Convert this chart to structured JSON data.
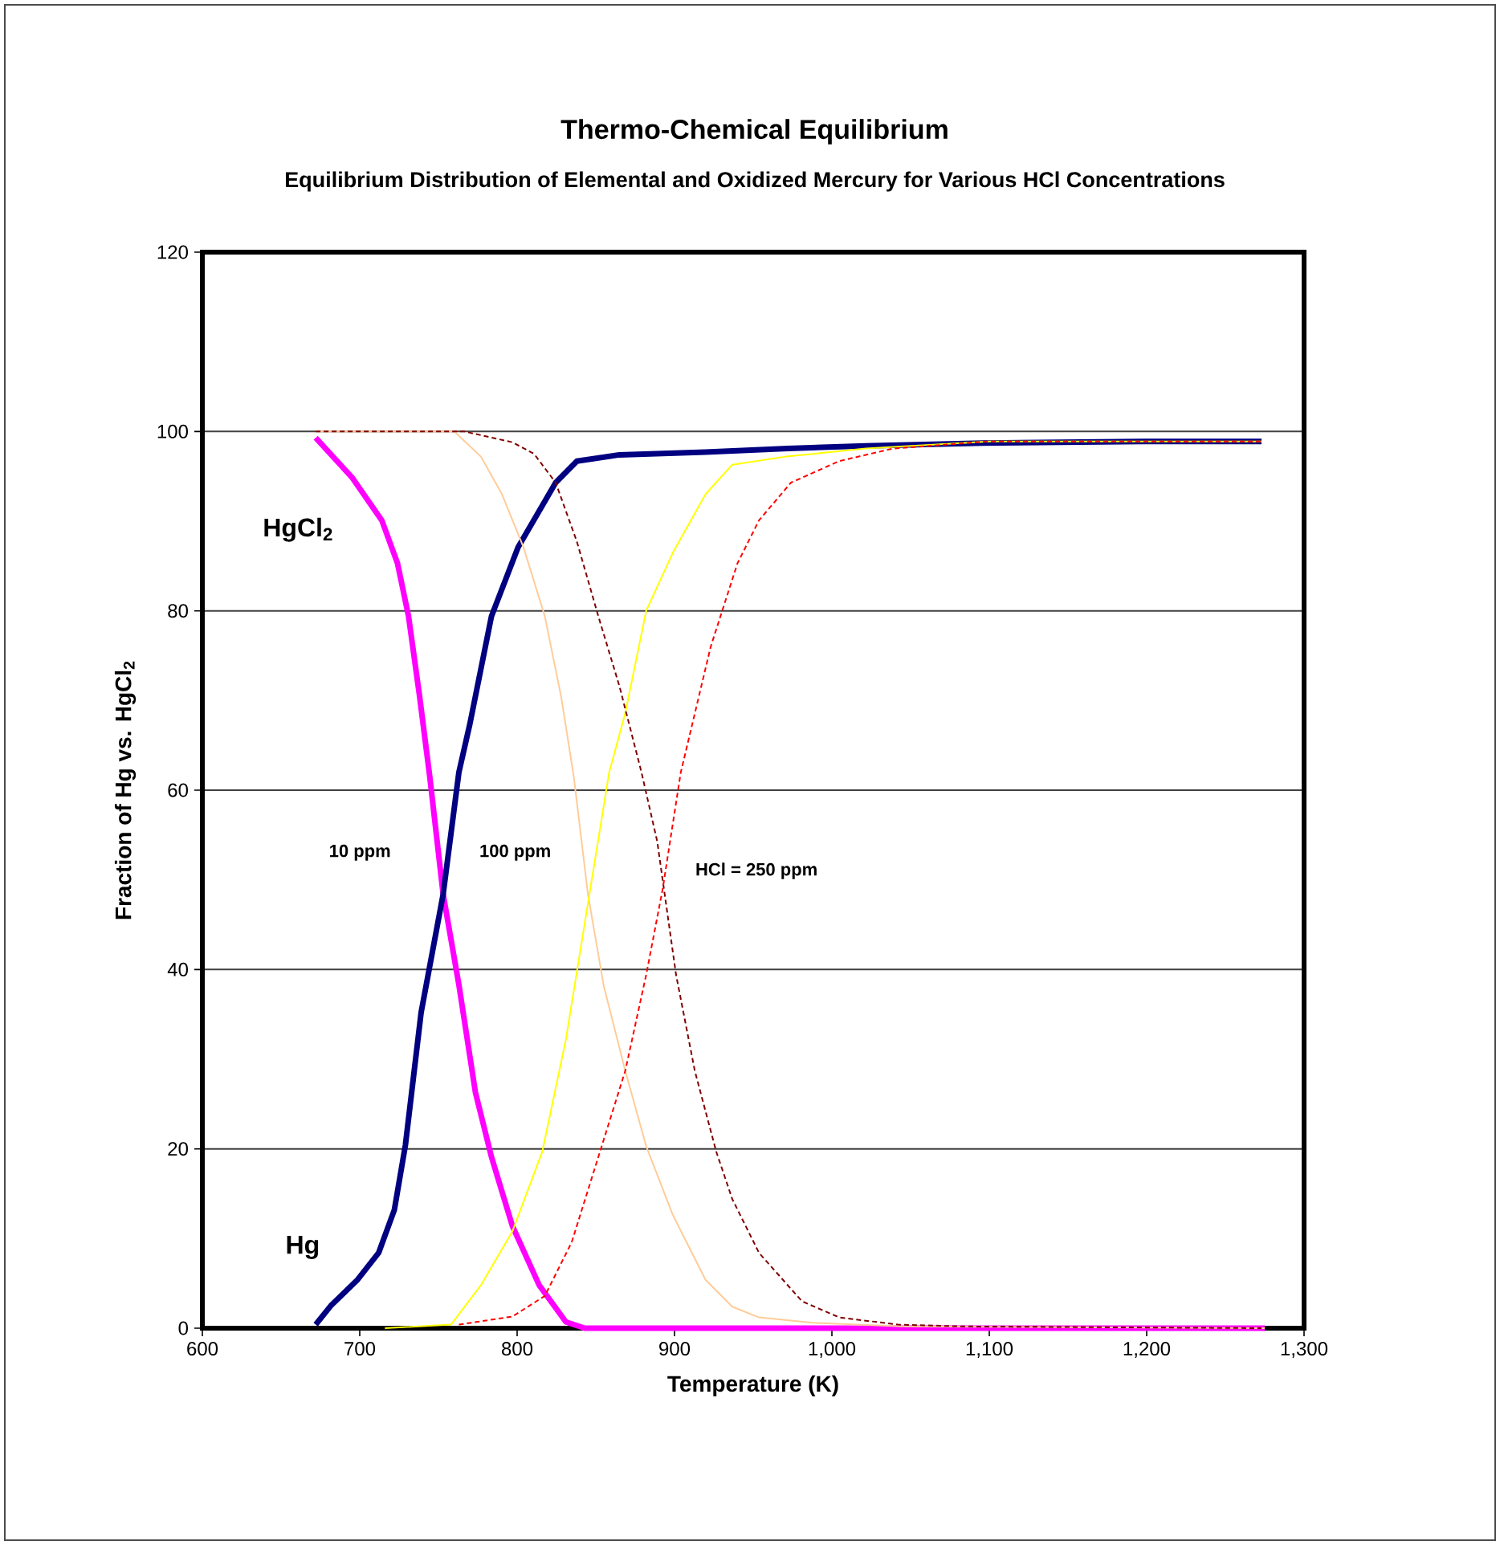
{
  "chart_data": {
    "type": "line",
    "title": "Thermo-Chemical Equilibrium",
    "subtitle": "Equilibrium Distribution of Elemental and Oxidized Mercury for Various HCl Concentrations",
    "xlabel": "Temperature (K)",
    "ylabel": "Fraction of Hg vs. HgCl$_{2}$",
    "xlim": [
      600,
      1300
    ],
    "ylim": [
      0,
      120
    ],
    "xticks": [
      600,
      700,
      800,
      900,
      {
        "value": 1000,
        "label": "1,000"
      },
      {
        "value": 1100,
        "label": "1,100"
      },
      {
        "value": 1200,
        "label": "1,200"
      },
      {
        "value": 1300,
        "label": "1,300"
      }
    ],
    "yticks": [
      0,
      20,
      40,
      60,
      80,
      100,
      120
    ],
    "grid": "y",
    "marker": "none",
    "series": [
      {
        "color": "#ff00ff",
        "line_style": "solid",
        "x": [
          672,
          695,
          714,
          724,
          731,
          738,
          744.5,
          753,
          763,
          773.5,
          783.7,
          797,
          814,
          831,
          843,
          1275
        ],
        "values": [
          99.3,
          94.9,
          90.1,
          85.3,
          79.4,
          70.5,
          61.5,
          48.4,
          38.3,
          26.3,
          19.1,
          11.4,
          4.8,
          0.7,
          0,
          0
        ]
      },
      {
        "color": "#000080",
        "line_style": "solid",
        "x": [
          672,
          681.6,
          698.6,
          712,
          722,
          729,
          739,
          753,
          763,
          770,
          783.7,
          800.6,
          824.5,
          838,
          865,
          919.7,
          972,
          1021.7,
          1096,
          1198,
          1273
        ],
        "values": [
          0.4,
          2.5,
          5.4,
          8.4,
          13.2,
          20.4,
          35.2,
          48.4,
          62,
          67.4,
          79.4,
          87.1,
          94.3,
          96.7,
          97.4,
          97.7,
          98.1,
          98.4,
          98.7,
          98.9,
          98.9
        ]
      },
      {
        "color": "#ffcc99",
        "line_style": "solid",
        "x": [
          672,
          760,
          777,
          790.4,
          804,
          817.6,
          828,
          836,
          845,
          855,
          868.7,
          882,
          899,
          919.7,
          936.7,
          953.7,
          987.8,
          1045,
          1275
        ],
        "values": [
          100,
          100,
          97.2,
          93,
          87.1,
          79.4,
          70.4,
          61.5,
          48.4,
          38.2,
          28.7,
          20.3,
          12.6,
          5.4,
          2.4,
          1.2,
          0.6,
          0.2,
          0
        ]
      },
      {
        "color": "#ffff00",
        "line_style": "solid",
        "x": [
          716,
          758,
          777,
          797,
          816,
          831,
          846.5,
          858.5,
          868.7,
          882,
          899,
          919.7,
          936.7,
          970.7,
          1021.7,
          1100,
          1273
        ],
        "values": [
          0,
          0.4,
          4.8,
          10.8,
          19.7,
          32.2,
          49,
          62,
          68.6,
          80,
          86.5,
          93,
          96.3,
          97.2,
          98.1,
          98.9,
          98.9
        ]
      },
      {
        "color": "#800000",
        "line_style": "dashed",
        "x": [
          672,
          766.6,
          797,
          810.8,
          824.5,
          838,
          851.6,
          865,
          879,
          889,
          901,
          912.9,
          926.5,
          936.7,
          953.7,
          981,
          1004.7,
          1042,
          1083,
          1273
        ],
        "values": [
          100,
          100,
          98.8,
          97.5,
          94.3,
          87.7,
          79.4,
          71.6,
          62,
          54.3,
          39.4,
          28.7,
          19.7,
          14.4,
          8.4,
          3,
          1.2,
          0.4,
          0.2,
          0
        ]
      },
      {
        "color": "#ff0000",
        "line_style": "dashed",
        "x": [
          763,
          797,
          817.6,
          834.7,
          851.6,
          868.7,
          882,
          892.5,
          904,
          923,
          940,
          953.7,
          974,
          1004.7,
          1038.8,
          1100,
          1273
        ],
        "values": [
          0.4,
          1.3,
          3.6,
          9.6,
          19.1,
          28.7,
          39.4,
          49,
          62,
          76,
          85.3,
          90.1,
          94.3,
          96.7,
          98.1,
          98.9,
          98.9
        ]
      }
    ],
    "annotations": [
      "HgCl$_{2}$",
      "Hg",
      "10 ppm",
      "100 ppm",
      "HCl = 250 ppm"
    ]
  }
}
